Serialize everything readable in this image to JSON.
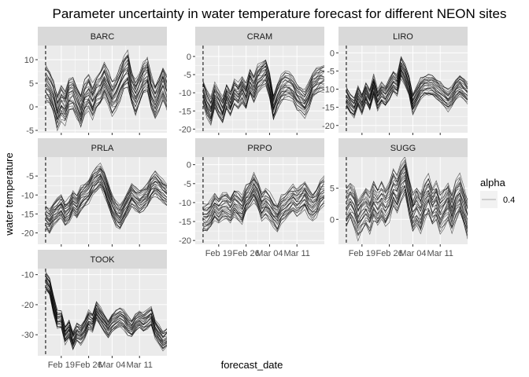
{
  "chart_data": {
    "type": "line",
    "title": "Parameter uncertainty in water temperature forecast for different NEON sites",
    "xlabel": "forecast_date",
    "ylabel": "water temperature",
    "x_tick_labels": [
      "Feb 19",
      "Feb 26",
      "Mar 04",
      "Mar 11"
    ],
    "x_tick_dates": [
      "2021-02-19",
      "2021-02-26",
      "2021-03-04",
      "2021-03-11"
    ],
    "xlim": [
      "2021-02-13",
      "2021-03-18"
    ],
    "forecast_start": "2021-02-15",
    "ensemble_members": 25,
    "line_color": "#000000",
    "line_alpha": 0.4,
    "grid": true,
    "legend": {
      "title": "alpha",
      "entries": [
        {
          "label": "0.4"
        }
      ],
      "position": "right"
    },
    "panels": [
      {
        "site": "BARC",
        "ylim": [
          -5.5,
          13
        ],
        "y_ticks": [
          -5,
          0,
          5,
          10
        ],
        "y_tick_labels": [
          "-5",
          "0",
          "5",
          "10"
        ],
        "center": [
          [
            0,
            5
          ],
          [
            1,
            4
          ],
          [
            2,
            2
          ],
          [
            3,
            -1
          ],
          [
            4,
            1
          ],
          [
            5,
            0
          ],
          [
            6,
            2.5
          ],
          [
            7,
            3
          ],
          [
            8,
            1
          ],
          [
            9,
            -1
          ],
          [
            10,
            2
          ],
          [
            11,
            3
          ],
          [
            12,
            1
          ],
          [
            13,
            3
          ],
          [
            14,
            4
          ],
          [
            15,
            6
          ],
          [
            16,
            4
          ],
          [
            17,
            2
          ],
          [
            18,
            3
          ],
          [
            19,
            5
          ],
          [
            20,
            7
          ],
          [
            21,
            8
          ],
          [
            22,
            4
          ],
          [
            23,
            2
          ],
          [
            24,
            4
          ],
          [
            25,
            6
          ],
          [
            26,
            7
          ],
          [
            27,
            3
          ],
          [
            28,
            1
          ],
          [
            29,
            3
          ],
          [
            30,
            5
          ],
          [
            31,
            3
          ],
          [
            32,
            0
          ],
          [
            33,
            3
          ],
          [
            34,
            5
          ]
        ],
        "spread": 3.5
      },
      {
        "site": "CRAM",
        "ylim": [
          -21,
          3
        ],
        "y_ticks": [
          -20,
          -15,
          -10,
          -5,
          0
        ],
        "y_tick_labels": [
          "-20",
          "-15",
          "-10",
          "-5",
          "0"
        ],
        "center": [
          [
            0,
            -10
          ],
          [
            1,
            -13
          ],
          [
            2,
            -15
          ],
          [
            3,
            -11
          ],
          [
            4,
            -13
          ],
          [
            5,
            -15
          ],
          [
            6,
            -11
          ],
          [
            7,
            -13
          ],
          [
            8,
            -10
          ],
          [
            9,
            -11
          ],
          [
            10,
            -9
          ],
          [
            11,
            -11
          ],
          [
            12,
            -7
          ],
          [
            13,
            -9
          ],
          [
            14,
            -6
          ],
          [
            15,
            -5
          ],
          [
            16,
            -4
          ],
          [
            17,
            -8
          ],
          [
            18,
            -14
          ],
          [
            19,
            -11
          ],
          [
            20,
            -9
          ],
          [
            21,
            -8
          ],
          [
            22,
            -8
          ],
          [
            23,
            -9
          ],
          [
            24,
            -11
          ],
          [
            25,
            -12
          ],
          [
            26,
            -13
          ],
          [
            27,
            -11
          ],
          [
            28,
            -8
          ],
          [
            29,
            -7
          ],
          [
            30,
            -6
          ],
          [
            31,
            -6
          ],
          [
            32,
            -7
          ],
          [
            33,
            -6
          ],
          [
            34,
            -6
          ]
        ],
        "spread": 3.5
      },
      {
        "site": "LIRO",
        "ylim": [
          -22,
          2
        ],
        "y_ticks": [
          -20,
          -15,
          -10,
          -5,
          0
        ],
        "y_tick_labels": [
          "-20",
          "-15",
          "-10",
          "-5",
          "0"
        ],
        "center": [
          [
            0,
            -12
          ],
          [
            1,
            -14
          ],
          [
            2,
            -15
          ],
          [
            3,
            -12
          ],
          [
            4,
            -14
          ],
          [
            5,
            -11
          ],
          [
            6,
            -13
          ],
          [
            7,
            -9
          ],
          [
            8,
            -13
          ],
          [
            9,
            -11
          ],
          [
            10,
            -12
          ],
          [
            11,
            -10
          ],
          [
            12,
            -8
          ],
          [
            13,
            -9
          ],
          [
            14,
            -4
          ],
          [
            15,
            -6
          ],
          [
            16,
            -9
          ],
          [
            17,
            -14
          ],
          [
            18,
            -12
          ],
          [
            19,
            -10
          ],
          [
            20,
            -9
          ],
          [
            21,
            -9
          ],
          [
            22,
            -9
          ],
          [
            23,
            -10
          ],
          [
            24,
            -11
          ],
          [
            25,
            -12
          ],
          [
            26,
            -13
          ],
          [
            27,
            -12
          ],
          [
            28,
            -10
          ],
          [
            29,
            -9
          ],
          [
            30,
            -10
          ],
          [
            31,
            -11
          ],
          [
            32,
            -10
          ],
          [
            33,
            -9
          ],
          [
            34,
            -8
          ]
        ],
        "spread": 2.8
      },
      {
        "site": "PRLA",
        "ylim": [
          -23,
          0
        ],
        "y_ticks": [
          -20,
          -15,
          -10,
          -5
        ],
        "y_tick_labels": [
          "-20",
          "-15",
          "-10",
          "-5"
        ],
        "center": [
          [
            0,
            -16
          ],
          [
            1,
            -17
          ],
          [
            2,
            -15
          ],
          [
            3,
            -14
          ],
          [
            4,
            -13
          ],
          [
            5,
            -15
          ],
          [
            6,
            -14
          ],
          [
            7,
            -12
          ],
          [
            8,
            -13
          ],
          [
            9,
            -11
          ],
          [
            10,
            -10
          ],
          [
            11,
            -9
          ],
          [
            12,
            -7
          ],
          [
            13,
            -6
          ],
          [
            14,
            -5
          ],
          [
            15,
            -7
          ],
          [
            16,
            -10
          ],
          [
            17,
            -13
          ],
          [
            18,
            -15
          ],
          [
            19,
            -16
          ],
          [
            20,
            -14
          ],
          [
            21,
            -12
          ],
          [
            22,
            -10
          ],
          [
            23,
            -11
          ],
          [
            24,
            -12
          ],
          [
            25,
            -11
          ],
          [
            26,
            -10
          ],
          [
            27,
            -8
          ],
          [
            28,
            -7
          ],
          [
            29,
            -8
          ],
          [
            30,
            -9
          ],
          [
            31,
            -10
          ],
          [
            32,
            -9
          ],
          [
            33,
            -7
          ],
          [
            34,
            -5
          ]
        ],
        "spread": 3
      },
      {
        "site": "PRPO",
        "ylim": [
          -21,
          2
        ],
        "y_ticks": [
          -20,
          -15,
          -10,
          -5,
          0
        ],
        "y_tick_labels": [
          "-20",
          "-15",
          "-10",
          "-5",
          "0"
        ],
        "center": [
          [
            0,
            -14
          ],
          [
            1,
            -14
          ],
          [
            2,
            -13
          ],
          [
            3,
            -11
          ],
          [
            4,
            -12
          ],
          [
            5,
            -11
          ],
          [
            6,
            -11
          ],
          [
            7,
            -12
          ],
          [
            8,
            -10
          ],
          [
            9,
            -11
          ],
          [
            10,
            -12
          ],
          [
            11,
            -9
          ],
          [
            12,
            -8
          ],
          [
            13,
            -6
          ],
          [
            14,
            -8
          ],
          [
            15,
            -11
          ],
          [
            16,
            -10
          ],
          [
            17,
            -11
          ],
          [
            18,
            -13
          ],
          [
            19,
            -14
          ],
          [
            20,
            -12
          ],
          [
            21,
            -11
          ],
          [
            22,
            -10
          ],
          [
            23,
            -9
          ],
          [
            24,
            -10
          ],
          [
            25,
            -9
          ],
          [
            26,
            -8
          ],
          [
            27,
            -10
          ],
          [
            28,
            -11
          ],
          [
            29,
            -10
          ],
          [
            30,
            -8
          ],
          [
            31,
            -7
          ],
          [
            32,
            -8
          ],
          [
            33,
            -6
          ],
          [
            34,
            -3
          ]
        ],
        "spread": 3.5
      },
      {
        "site": "SUGG",
        "ylim": [
          -4,
          10
        ],
        "y_ticks": [
          0,
          5
        ],
        "y_tick_labels": [
          "0",
          "5"
        ],
        "center": [
          [
            0,
            2
          ],
          [
            1,
            3
          ],
          [
            2,
            2
          ],
          [
            3,
            0
          ],
          [
            4,
            1
          ],
          [
            5,
            2
          ],
          [
            6,
            1
          ],
          [
            7,
            3
          ],
          [
            8,
            2
          ],
          [
            9,
            3
          ],
          [
            10,
            2
          ],
          [
            11,
            3
          ],
          [
            12,
            5
          ],
          [
            13,
            4
          ],
          [
            14,
            6
          ],
          [
            15,
            7
          ],
          [
            16,
            4
          ],
          [
            17,
            1
          ],
          [
            18,
            2
          ],
          [
            19,
            1
          ],
          [
            20,
            3
          ],
          [
            21,
            4
          ],
          [
            22,
            2
          ],
          [
            23,
            3
          ],
          [
            24,
            1
          ],
          [
            25,
            2
          ],
          [
            26,
            3
          ],
          [
            27,
            1
          ],
          [
            28,
            3
          ],
          [
            29,
            4
          ],
          [
            30,
            2
          ],
          [
            31,
            0
          ],
          [
            32,
            3
          ],
          [
            33,
            2
          ],
          [
            34,
            4
          ]
        ],
        "spread": 3
      },
      {
        "site": "TOOK",
        "ylim": [
          -37,
          -8
        ],
        "y_ticks": [
          -30,
          -20,
          -10
        ],
        "y_tick_labels": [
          "-30",
          "-20",
          "-10"
        ],
        "center": [
          [
            0,
            -12
          ],
          [
            1,
            -14
          ],
          [
            2,
            -20
          ],
          [
            3,
            -25
          ],
          [
            4,
            -25
          ],
          [
            5,
            -30
          ],
          [
            6,
            -28
          ],
          [
            7,
            -32
          ],
          [
            8,
            -29
          ],
          [
            9,
            -30
          ],
          [
            10,
            -28
          ],
          [
            11,
            -25
          ],
          [
            12,
            -26
          ],
          [
            13,
            -22
          ],
          [
            14,
            -24
          ],
          [
            15,
            -26
          ],
          [
            16,
            -28
          ],
          [
            17,
            -26
          ],
          [
            18,
            -25
          ],
          [
            19,
            -24
          ],
          [
            20,
            -25
          ],
          [
            21,
            -27
          ],
          [
            22,
            -28
          ],
          [
            23,
            -26
          ],
          [
            24,
            -25
          ],
          [
            25,
            -26
          ],
          [
            26,
            -25
          ],
          [
            27,
            -24
          ],
          [
            28,
            -28
          ],
          [
            29,
            -30
          ],
          [
            30,
            -32
          ],
          [
            31,
            -31
          ],
          [
            32,
            -29
          ],
          [
            33,
            -24
          ],
          [
            34,
            -17
          ]
        ],
        "spread": 3
      }
    ]
  }
}
